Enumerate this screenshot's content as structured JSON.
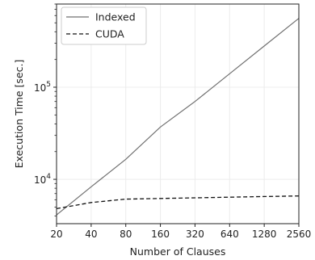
{
  "chart_data": {
    "type": "line",
    "xlabel": "Number of Clauses",
    "ylabel": "Execution Time [sec.]",
    "x_scale": "log2",
    "y_scale": "log10",
    "xlim": [
      20,
      2560
    ],
    "ylim": [
      3300,
      800000
    ],
    "x": [
      20,
      40,
      80,
      160,
      320,
      640,
      1280,
      2560
    ],
    "x_tick_labels": [
      "20",
      "40",
      "80",
      "160",
      "320",
      "640",
      "1280",
      "2560"
    ],
    "y_ticks": [
      {
        "value": 10000,
        "base": "10",
        "exp": "4"
      },
      {
        "value": 100000,
        "base": "10",
        "exp": "5"
      }
    ],
    "grid": true,
    "legend_position": "top-left",
    "series": [
      {
        "name": "Indexed",
        "color": "#707070",
        "style": "solid",
        "values": [
          4100,
          8300,
          16500,
          37000,
          70000,
          140000,
          280000,
          560000
        ]
      },
      {
        "name": "CUDA",
        "color": "#111111",
        "style": "dashed",
        "values": [
          4800,
          5600,
          6100,
          6200,
          6300,
          6400,
          6500,
          6600
        ]
      }
    ]
  }
}
